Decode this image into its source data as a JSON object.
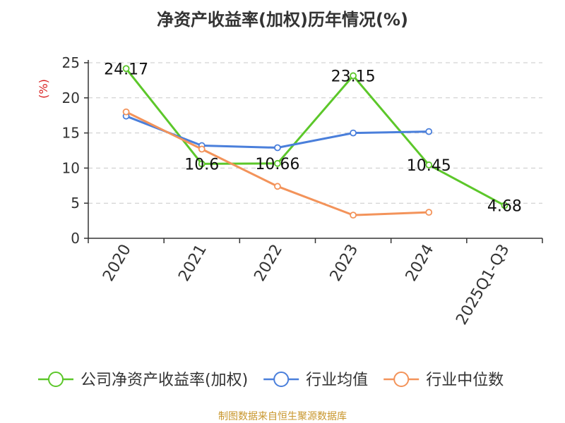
{
  "chart_data": {
    "type": "line",
    "title": "净资产收益率(加权)历年情况(%)",
    "ylabel": "(%)",
    "xlabel": "",
    "categories": [
      "2020",
      "2021",
      "2022",
      "2023",
      "2024",
      "2025Q1-Q3"
    ],
    "ylim": [
      0,
      25
    ],
    "yticks": [
      0,
      5,
      10,
      15,
      20,
      25
    ],
    "grid": true,
    "legend_position": "bottom",
    "series": [
      {
        "name": "公司净资产收益率(加权)",
        "color": "#5cc72a",
        "values": [
          24.17,
          10.6,
          10.66,
          23.15,
          10.45,
          4.68
        ],
        "labels": [
          "24.17",
          "10.6",
          "10.66",
          "23.15",
          "10.45",
          "4.68"
        ]
      },
      {
        "name": "行业均值",
        "color": "#4a7fdb",
        "values": [
          17.4,
          13.2,
          12.9,
          15.0,
          15.2,
          null
        ]
      },
      {
        "name": "行业中位数",
        "color": "#f3935a",
        "values": [
          18.0,
          12.7,
          7.4,
          3.3,
          3.7,
          null
        ]
      }
    ]
  },
  "source": "制图数据来自恒生聚源数据库",
  "source_color": "#c8962c",
  "ylabel_color": "#d92020"
}
